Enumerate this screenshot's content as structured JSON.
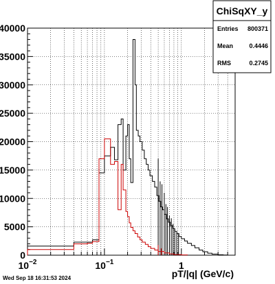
{
  "stats_box": {
    "title": "ChiSqXY_y",
    "rows": [
      {
        "label": "Entries",
        "value": "800371"
      },
      {
        "label": "Mean",
        "value": "0.4446"
      },
      {
        "label": "RMS",
        "value": "0.2745"
      }
    ]
  },
  "footer_timestamp": "Wed Sep 18 16:31:53 2024",
  "colors": {
    "black_series": "#000000",
    "red_series": "#cc0000",
    "grid": "#000000"
  },
  "chart_data": {
    "type": "histogram",
    "xlabel": "pT/|q| (GeV/c)",
    "ylabel": "",
    "xscale": "log",
    "xlim": [
      0.01,
      5
    ],
    "ylim": [
      0,
      40000
    ],
    "grid": true,
    "x_ticks": [
      {
        "value": 0.01,
        "label": "10",
        "sup": "−2"
      },
      {
        "value": 0.1,
        "label": "10",
        "sup": "−1"
      },
      {
        "value": 1,
        "label": "1",
        "sup": ""
      }
    ],
    "y_ticks": [
      0,
      5000,
      10000,
      15000,
      20000,
      25000,
      30000,
      35000,
      40000
    ],
    "series": [
      {
        "color": "#000000",
        "steps": [
          [
            0.01,
            1600
          ],
          [
            0.04,
            2300
          ],
          [
            0.06,
            2300
          ],
          [
            0.07,
            2700
          ],
          [
            0.085,
            14500
          ],
          [
            0.1,
            17500
          ],
          [
            0.12,
            19000
          ],
          [
            0.135,
            16800
          ],
          [
            0.15,
            23000
          ],
          [
            0.165,
            24000
          ],
          [
            0.175,
            15000
          ],
          [
            0.19,
            21000
          ],
          [
            0.2,
            23000
          ],
          [
            0.21,
            17000
          ],
          [
            0.22,
            12800
          ],
          [
            0.235,
            38000
          ],
          [
            0.25,
            30000
          ],
          [
            0.26,
            22000
          ],
          [
            0.275,
            21000
          ],
          [
            0.29,
            20000
          ],
          [
            0.31,
            18500
          ],
          [
            0.33,
            17000
          ],
          [
            0.35,
            16000
          ],
          [
            0.37,
            15000
          ],
          [
            0.39,
            14000
          ],
          [
            0.42,
            13000
          ],
          [
            0.45,
            12000
          ],
          [
            0.48,
            10500
          ],
          [
            0.51,
            9500
          ],
          [
            0.54,
            8500
          ],
          [
            0.57,
            8000
          ],
          [
            0.6,
            7200
          ],
          [
            0.64,
            6400
          ],
          [
            0.68,
            5800
          ],
          [
            0.72,
            5200
          ],
          [
            0.77,
            4700
          ],
          [
            0.82,
            4200
          ],
          [
            0.87,
            3800
          ],
          [
            0.93,
            3300
          ],
          [
            1.0,
            2900
          ],
          [
            1.1,
            2500
          ],
          [
            1.2,
            2100
          ],
          [
            1.35,
            1700
          ],
          [
            1.5,
            1300
          ],
          [
            1.7,
            900
          ],
          [
            1.9,
            600
          ],
          [
            2.2,
            350
          ],
          [
            2.5,
            200
          ],
          [
            3.0,
            80
          ],
          [
            3.5,
            30
          ],
          [
            4.0,
            0
          ]
        ],
        "spikes": [
          [
            0.5,
            17000
          ],
          [
            0.53,
            13000
          ],
          [
            0.56,
            12500
          ],
          [
            0.6,
            11000
          ],
          [
            0.63,
            9000
          ],
          [
            0.66,
            8500
          ],
          [
            0.7,
            7000
          ],
          [
            0.74,
            6500
          ],
          [
            0.78,
            5500
          ],
          [
            0.82,
            4600
          ],
          [
            0.87,
            4200
          ],
          [
            0.92,
            3700
          ]
        ]
      },
      {
        "color": "#cc0000",
        "steps": [
          [
            0.01,
            1000
          ],
          [
            0.04,
            2000
          ],
          [
            0.06,
            2100
          ],
          [
            0.07,
            2400
          ],
          [
            0.085,
            17000
          ],
          [
            0.1,
            20500
          ],
          [
            0.12,
            16000
          ],
          [
            0.135,
            16500
          ],
          [
            0.15,
            8000
          ],
          [
            0.165,
            16000
          ],
          [
            0.175,
            11500
          ],
          [
            0.19,
            7700
          ],
          [
            0.2,
            6800
          ],
          [
            0.21,
            5700
          ],
          [
            0.22,
            4900
          ],
          [
            0.235,
            4300
          ],
          [
            0.25,
            3800
          ],
          [
            0.27,
            3200
          ],
          [
            0.29,
            2700
          ],
          [
            0.31,
            2300
          ],
          [
            0.34,
            1900
          ],
          [
            0.37,
            1500
          ],
          [
            0.4,
            1200
          ],
          [
            0.45,
            900
          ],
          [
            0.5,
            650
          ],
          [
            0.6,
            400
          ],
          [
            0.7,
            220
          ],
          [
            0.8,
            110
          ],
          [
            1.0,
            40
          ],
          [
            1.2,
            0
          ]
        ],
        "spikes": [
          [
            0.5,
            1800
          ],
          [
            0.55,
            1200
          ]
        ]
      }
    ]
  }
}
